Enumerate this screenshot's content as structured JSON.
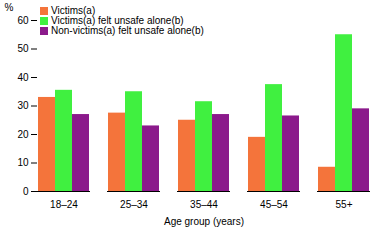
{
  "chart_data": {
    "type": "bar",
    "categories": [
      "18–24",
      "25–34",
      "35–44",
      "45–54",
      "55+"
    ],
    "series": [
      {
        "name": "Victims(a)",
        "color": "#f4743b",
        "values": [
          33,
          27.5,
          25,
          19,
          8.5
        ]
      },
      {
        "name": "Victims(a) felt unsafe alone(b)",
        "color": "#40f040",
        "values": [
          35.5,
          35,
          31.5,
          37.5,
          55
        ]
      },
      {
        "name": "Non-victims(a) felt unsafe alone(b)",
        "color": "#8b1a8b",
        "values": [
          27,
          23,
          27,
          26.5,
          29
        ]
      }
    ],
    "x_label": "Age group (years)",
    "y_label": "%",
    "ylim": [
      0,
      60
    ],
    "yticks": [
      0,
      10,
      20,
      30,
      40,
      50,
      60
    ],
    "grid": false,
    "legend": "top-left"
  }
}
